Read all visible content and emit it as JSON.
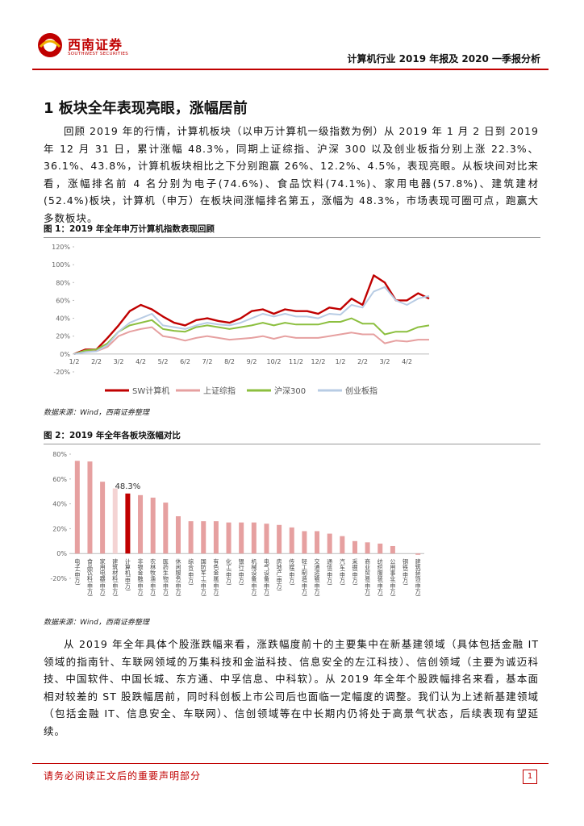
{
  "header": {
    "logo_name": "西南证券",
    "logo_subtitle": "SOUTHWEST SECURITIES",
    "report_title": "计算机行业 2019 年报及 2020 一季报分析"
  },
  "section": {
    "title": "1 板块全年表现亮眼，涨幅居前",
    "paragraph": "回顾 2019 年的行情，计算机板块（以申万计算机一级指数为例）从 2019 年 1 月 2 日到 2019 年 12 月 31 日，累计涨幅 48.3%，同期上证综指、沪深 300 以及创业板指分别上涨 22.3%、36.1%、43.8%，计算机板块相比之下分别跑赢 26%、12.2%、4.5%，表现亮眼。从板块间对比来看，涨幅排名前 4 名分别为电子(74.6%)、食品饮料(74.1%)、家用电器(57.8%)、建筑建材(52.4%)板块，计算机（申万）在板块间涨幅排名第五，涨幅为 48.3%，市场表现可圈可点，跑赢大多数板块。"
  },
  "figures": [
    {
      "caption": "图 1：2019 年全年申万计算机指数表现回顾",
      "source": "数据来源：Wind，西南证券整理",
      "chart_data": {
        "type": "line",
        "categories": [
          "1/2",
          null,
          "2/2",
          null,
          "3/2",
          null,
          "4/2",
          null,
          "5/2",
          null,
          "6/2",
          null,
          "7/2",
          null,
          "8/2",
          null,
          "9/2",
          null,
          "10/2",
          null,
          "11/2",
          null,
          "12/2",
          null,
          "1/2",
          null,
          "2/2",
          null,
          "3/2",
          null,
          "4/2",
          null,
          null
        ],
        "series": [
          {
            "name": "SW计算机",
            "color": "#c00000",
            "values": [
              0,
              5,
              5,
              18,
              32,
              48,
              55,
              50,
              42,
              35,
              32,
              38,
              40,
              37,
              35,
              40,
              48,
              50,
              45,
              50,
              48,
              48,
              45,
              52,
              50,
              62,
              55,
              88,
              80,
              60,
              60,
              68,
              62
            ]
          },
          {
            "name": "上证综指",
            "color": "#e6a0a0",
            "values": [
              0,
              3,
              3,
              8,
              20,
              25,
              28,
              30,
              20,
              18,
              15,
              18,
              20,
              18,
              16,
              17,
              18,
              20,
              17,
              20,
              18,
              18,
              18,
              20,
              22,
              24,
              22,
              22,
              12,
              15,
              14,
              16,
              16
            ]
          },
          {
            "name": "沪深300",
            "color": "#8cbf3f",
            "values": [
              0,
              4,
              5,
              12,
              25,
              32,
              35,
              38,
              28,
              26,
              25,
              30,
              32,
              30,
              28,
              30,
              32,
              35,
              32,
              35,
              33,
              33,
              33,
              36,
              36,
              40,
              34,
              34,
              22,
              25,
              25,
              30,
              32
            ]
          },
          {
            "name": "创业板指",
            "color": "#b8cce4",
            "values": [
              0,
              2,
              3,
              10,
              25,
              35,
              40,
              45,
              32,
              30,
              28,
              32,
              35,
              33,
              32,
              35,
              40,
              45,
              42,
              45,
              42,
              42,
              40,
              45,
              44,
              55,
              52,
              70,
              75,
              60,
              55,
              62,
              65
            ]
          }
        ],
        "ylim": [
          -20,
          120
        ],
        "yticks": [
          {
            "value": -20,
            "label": "-20%"
          },
          {
            "value": 0,
            "label": "0%"
          },
          {
            "value": 20,
            "label": "20%"
          },
          {
            "value": 40,
            "label": "40%"
          },
          {
            "value": 60,
            "label": "60%"
          },
          {
            "value": 80,
            "label": "80%"
          },
          {
            "value": 100,
            "label": "100%"
          },
          {
            "value": 120,
            "label": "120%"
          }
        ]
      }
    },
    {
      "caption": "图 2：2019 年全年各板块涨幅对比",
      "source": "数据来源：Wind，西南证券整理",
      "chart_data": {
        "type": "bar",
        "categories": [
          "电子(申万)",
          "食品饮料(申万)",
          "家用电器(申万)",
          "建筑材料(申万)",
          "计算机(申万)",
          "非银金融(申万)",
          "农林牧渔(申万)",
          "医药生物(申万)",
          "休闲服务(申万)",
          "综合(申万)",
          "国防军工(申万)",
          "有色金属(申万)",
          "化工(申万)",
          "银行(申万)",
          "机械设备(申万)",
          "电气设备(申万)",
          "房地产(申万)",
          "传媒(申万)",
          "轻工制造(申万)",
          "交通运输(申万)",
          "通信(申万)",
          "汽车(申万)",
          "采掘(申万)",
          "商业贸易(申万)",
          "纺织服装(申万)",
          "公用事业(申万)",
          "钢铁(申万)",
          "建筑装饰(申万)"
        ],
        "values": [
          74.6,
          74.1,
          57.8,
          52.4,
          48.3,
          47,
          45,
          41,
          30,
          26,
          26,
          26,
          25,
          25,
          25,
          24,
          23,
          21,
          18,
          18,
          16,
          14,
          10,
          9,
          8,
          6,
          0,
          -1
        ],
        "value_labels": [
          null,
          null,
          null,
          null,
          "48.3%",
          null,
          null,
          null,
          null,
          null,
          null,
          null,
          null,
          null,
          null,
          null,
          null,
          null,
          null,
          null,
          null,
          null,
          null,
          null,
          null,
          null,
          null,
          null
        ],
        "colors": [
          "#e6a0a0",
          "#e6a0a0",
          "#e6a0a0",
          "#f4d3d3",
          "#c00000",
          "#e6a0a0",
          "#e6a0a0",
          "#e6a0a0",
          "#e6a0a0",
          "#e6a0a0",
          "#e6a0a0",
          "#e6a0a0",
          "#e6a0a0",
          "#e6a0a0",
          "#e6a0a0",
          "#e6a0a0",
          "#e6a0a0",
          "#e6a0a0",
          "#e6a0a0",
          "#e6a0a0",
          "#e6a0a0",
          "#e6a0a0",
          "#e6a0a0",
          "#e6a0a0",
          "#e6a0a0",
          "#e6a0a0",
          "#e6a0a0",
          "#e6a0a0"
        ],
        "ylim": [
          -20,
          80
        ],
        "yticks": [
          {
            "value": -20,
            "label": "-20%"
          },
          {
            "value": 0,
            "label": "0%"
          },
          {
            "value": 20,
            "label": "20%"
          },
          {
            "value": 40,
            "label": "40%"
          },
          {
            "value": 60,
            "label": "60%"
          },
          {
            "value": 80,
            "label": "80%"
          }
        ]
      }
    }
  ],
  "closing_paragraph": "从 2019 年全年具体个股涨跌幅来看，涨跌幅度前十的主要集中在新基建领域（具体包括金融 IT 领域的指南针、车联网领域的万集科技和金溢科技、信息安全的左江科技）、信创领域（主要为诚迈科技、中国软件、中国长城、东方通、中孚信息、中科软）。从 2019 年全年个股跌幅排名来看，基本面相对较差的 ST 股跌幅居前，同时科创板上市公司后也面临一定幅度的调整。我们认为上述新基建领域（包括金融 IT、信息安全、车联网）、信创领域等在中长期内仍将处于高景气状态，后续表现有望延续。",
  "footer": {
    "disclaimer": "请务必阅读正文后的重要声明部分",
    "page_number": 1
  }
}
